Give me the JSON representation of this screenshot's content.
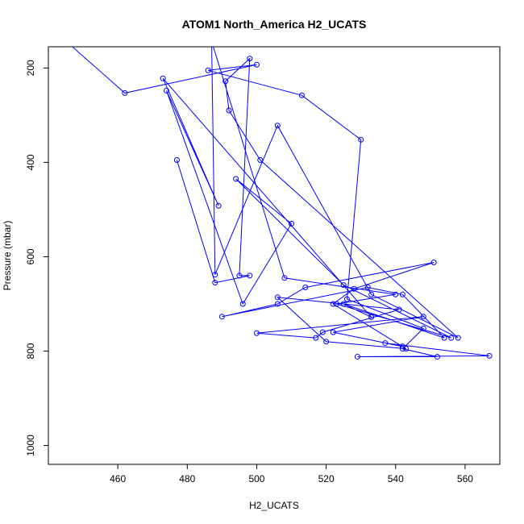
{
  "chart_data": {
    "type": "line",
    "title": "ATOM1 North_America H2_UCATS",
    "xlabel": "H2_UCATS",
    "ylabel": "Pressure (mbar)",
    "xlim": [
      440,
      570
    ],
    "ylim": [
      1040,
      155
    ],
    "y_inverted": true,
    "x_ticks": [
      460,
      480,
      500,
      520,
      540,
      560
    ],
    "y_ticks": [
      200,
      400,
      600,
      800,
      1000
    ],
    "grid": false,
    "line_color": "#0000ff",
    "markers": "open-circle",
    "series": [
      {
        "x": [
          440,
          462,
          500,
          486,
          513,
          530,
          526,
          548,
          542,
          552,
          529,
          567,
          537,
          542,
          522,
          548,
          500,
          517,
          519,
          541,
          506,
          520,
          543,
          522,
          528,
          551,
          514,
          506,
          490,
          532,
          542,
          554,
          525,
          533,
          473,
          489,
          474,
          496,
          510,
          494,
          525,
          556,
          523,
          540,
          508,
          487,
          488,
          506,
          533,
          558,
          501,
          492,
          491,
          498,
          495,
          498,
          488,
          477
        ],
        "y": [
          110,
          253,
          193,
          205,
          258,
          352,
          690,
          752,
          795,
          812,
          812,
          810,
          783,
          790,
          760,
          727,
          762,
          772,
          760,
          712,
          686,
          780,
          795,
          700,
          668,
          612,
          665,
          700,
          727,
          665,
          680,
          772,
          700,
          728,
          222,
          492,
          248,
          700,
          530,
          435,
          660,
          772,
          700,
          680,
          645,
          143,
          638,
          322,
          680,
          772,
          395,
          290,
          228,
          180,
          640,
          640,
          655,
          395
        ]
      }
    ]
  }
}
